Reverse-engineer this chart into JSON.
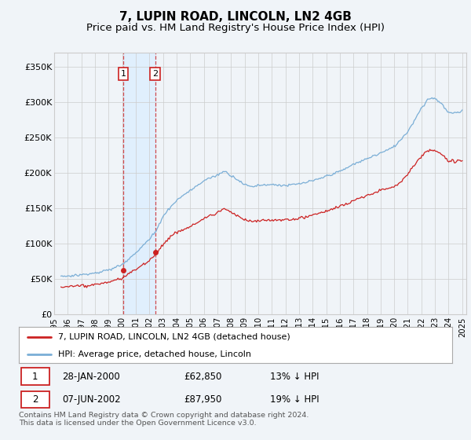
{
  "title": "7, LUPIN ROAD, LINCOLN, LN2 4GB",
  "subtitle": "Price paid vs. HM Land Registry's House Price Index (HPI)",
  "title_fontsize": 11,
  "subtitle_fontsize": 9.5,
  "ylim": [
    0,
    370000
  ],
  "yticks": [
    0,
    50000,
    100000,
    150000,
    200000,
    250000,
    300000,
    350000
  ],
  "ytick_labels": [
    "£0",
    "£50K",
    "£100K",
    "£150K",
    "£200K",
    "£250K",
    "£300K",
    "£350K"
  ],
  "sale1_date_num": 2000.07,
  "sale1_price": 62850,
  "sale2_date_num": 2002.43,
  "sale2_price": 87950,
  "hpi_color": "#7aaed6",
  "price_color": "#cc2222",
  "marker_box_color": "#cc2222",
  "shade_color": "#ddeeff",
  "background_color": "#f0f4f8",
  "grid_color": "#cccccc",
  "legend_label_price": "7, LUPIN ROAD, LINCOLN, LN2 4GB (detached house)",
  "legend_label_hpi": "HPI: Average price, detached house, Lincoln",
  "footnote": "Contains HM Land Registry data © Crown copyright and database right 2024.\nThis data is licensed under the Open Government Licence v3.0.",
  "xmin": 1995.5,
  "xmax": 2025.3
}
